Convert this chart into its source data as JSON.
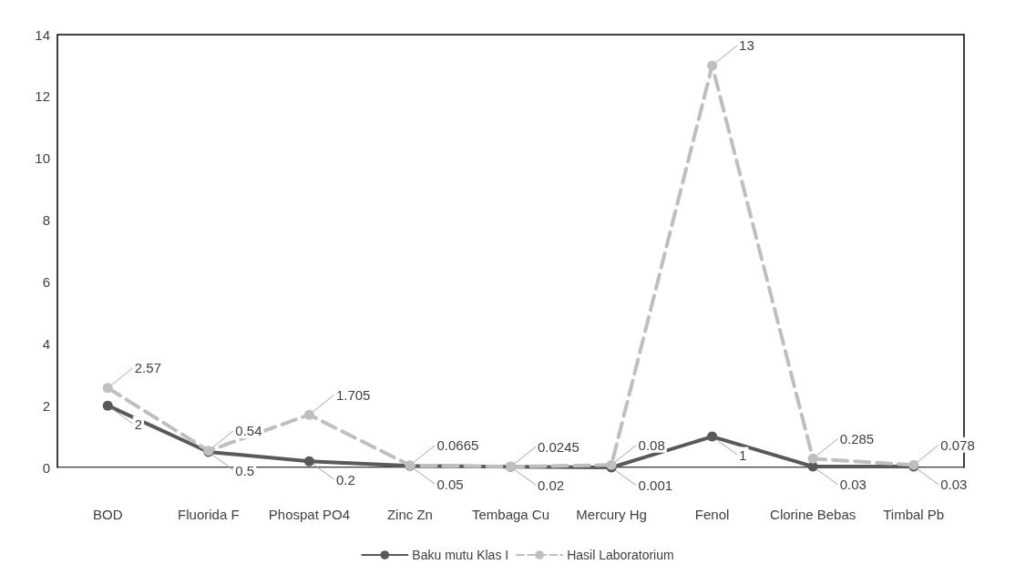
{
  "chart_data": {
    "type": "line",
    "categories": [
      "BOD",
      "Fluorida F",
      "Phospat PO4",
      "Zinc Zn",
      "Tembaga Cu",
      "Mercury Hg",
      "Fenol",
      "Clorine Bebas",
      "Timbal Pb"
    ],
    "series": [
      {
        "name": "Baku mutu Klas I",
        "color": "#595959",
        "line_style": "solid",
        "values": [
          2,
          0.5,
          0.2,
          0.05,
          0.02,
          0.001,
          1,
          0.03,
          0.03
        ]
      },
      {
        "name": "Hasil Laboratorium",
        "color": "#bfbfbf",
        "line_style": "dashed",
        "values": [
          2.57,
          0.54,
          1.705,
          0.0665,
          0.0245,
          0.08,
          13,
          0.285,
          0.078
        ]
      }
    ],
    "ylim": [
      0,
      14
    ],
    "yticks": [
      0,
      2,
      4,
      6,
      8,
      10,
      12,
      14
    ],
    "grid": false,
    "legend": "bottom",
    "marker": "circle",
    "data_labels": true
  }
}
